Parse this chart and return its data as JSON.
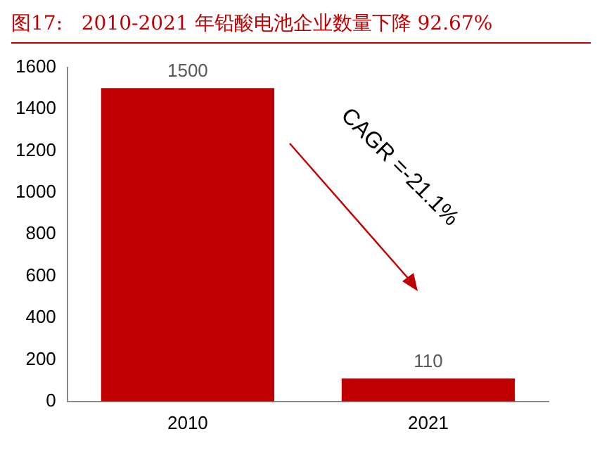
{
  "chart_data": {
    "type": "bar",
    "title": "图17:   2010-2021 年铅酸电池企业数量下降 92.67%",
    "categories": [
      "2010",
      "2021"
    ],
    "values": [
      1500,
      110
    ],
    "color": "#c00000",
    "ylim": [
      0,
      1600
    ],
    "yticks": [
      0,
      200,
      400,
      600,
      800,
      1000,
      1200,
      1400,
      1600
    ],
    "grid": false,
    "legend": false,
    "data_labels": true,
    "annotations": [
      "CAGR =-21.1%"
    ]
  }
}
